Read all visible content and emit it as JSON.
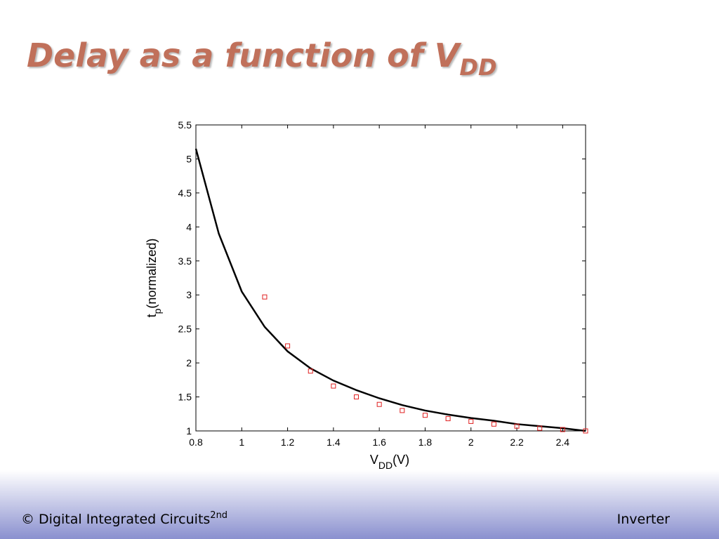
{
  "slide": {
    "title": {
      "text": "Delay as a function of V",
      "subscript": "DD"
    },
    "footer": {
      "left": "© Digital Integrated Circuits",
      "left_superscript": "2nd",
      "right": "Inverter"
    }
  },
  "chart_data": {
    "type": "line",
    "xlabel": {
      "text": "V",
      "subscript": "DD",
      "suffix": "(V)"
    },
    "ylabel": {
      "text": "t",
      "subscript": "p",
      "suffix": "(normalized)"
    },
    "xlim": [
      0.8,
      2.5
    ],
    "xticks": [
      0.8,
      1,
      1.2,
      1.4,
      1.6,
      1.8,
      2,
      2.2,
      2.4
    ],
    "ylim": [
      1,
      5.5
    ],
    "yticks": [
      1,
      1.5,
      2,
      2.5,
      3,
      3.5,
      4,
      4.5,
      5,
      5.5
    ],
    "series": [
      {
        "style": "line",
        "color": "#000000",
        "x": [
          0.8,
          0.9,
          1.0,
          1.1,
          1.2,
          1.3,
          1.4,
          1.5,
          1.6,
          1.7,
          1.8,
          1.9,
          2.0,
          2.1,
          2.2,
          2.3,
          2.4,
          2.5
        ],
        "values": [
          5.15,
          3.9,
          3.05,
          2.53,
          2.17,
          1.92,
          1.74,
          1.6,
          1.48,
          1.38,
          1.3,
          1.24,
          1.19,
          1.15,
          1.1,
          1.07,
          1.04,
          1.0
        ]
      },
      {
        "style": "markers",
        "color": "#e02020",
        "x": [
          1.1,
          1.2,
          1.3,
          1.4,
          1.5,
          1.6,
          1.7,
          1.8,
          1.9,
          2.0,
          2.1,
          2.2,
          2.3,
          2.4,
          2.5
        ],
        "values": [
          2.97,
          2.25,
          1.88,
          1.66,
          1.5,
          1.39,
          1.3,
          1.23,
          1.18,
          1.14,
          1.1,
          1.07,
          1.04,
          1.02,
          1.0
        ]
      }
    ]
  }
}
